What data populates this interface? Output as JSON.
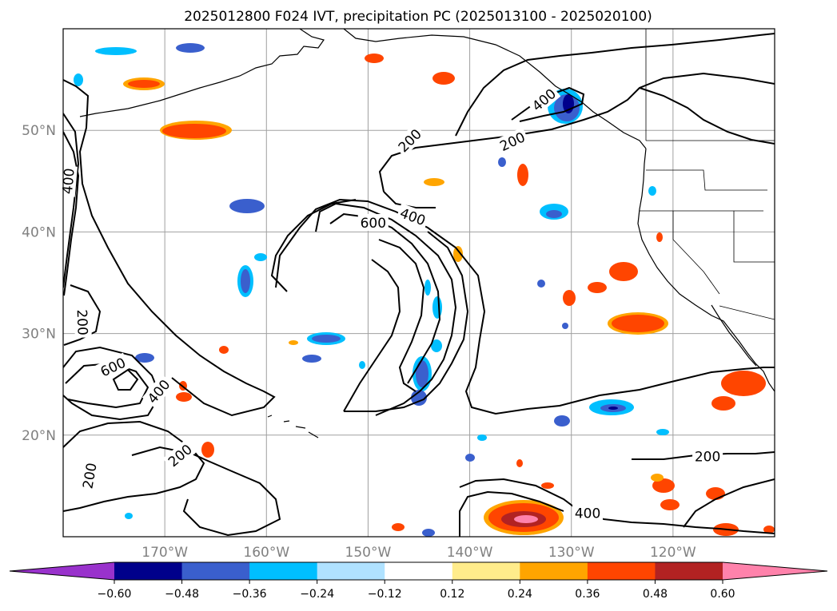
{
  "title": "2025012800 F024 IVT, precipitation PC (2025013100 - 2025020100)",
  "map": {
    "lon_range": [
      -180,
      -110
    ],
    "lat_range": [
      10,
      60
    ],
    "lon_ticks": [
      {
        "lon": -170,
        "label": "170°W"
      },
      {
        "lon": -160,
        "label": "160°W"
      },
      {
        "lon": -150,
        "label": "150°W"
      },
      {
        "lon": -140,
        "label": "140°W"
      },
      {
        "lon": -130,
        "label": "130°W"
      },
      {
        "lon": -120,
        "label": "120°W"
      }
    ],
    "lat_ticks": [
      {
        "lat": 50,
        "label": "50°N"
      },
      {
        "lat": 40,
        "label": "40°N"
      },
      {
        "lat": 30,
        "label": "30°N"
      },
      {
        "lat": 20,
        "label": "20°N"
      }
    ],
    "gridlines": true,
    "ivt_contour_labels": [
      {
        "text": "400",
        "lon": -179.5,
        "lat": 45.0,
        "angle": -85
      },
      {
        "text": "200",
        "lon": -178.1,
        "lat": 31.1,
        "angle": 88
      },
      {
        "text": "600",
        "lon": -175.1,
        "lat": 26.7,
        "angle": -25
      },
      {
        "text": "400",
        "lon": -170.6,
        "lat": 24.3,
        "angle": -50
      },
      {
        "text": "200",
        "lon": -168.5,
        "lat": 18.0,
        "angle": -40
      },
      {
        "text": "200",
        "lon": -177.4,
        "lat": 16.0,
        "angle": -80
      },
      {
        "text": "200",
        "lon": -145.9,
        "lat": 49.0,
        "angle": -45
      },
      {
        "text": "200",
        "lon": -135.8,
        "lat": 48.9,
        "angle": -25
      },
      {
        "text": "400",
        "lon": -132.7,
        "lat": 53.0,
        "angle": -40
      },
      {
        "text": "600",
        "lon": -149.5,
        "lat": 40.9,
        "angle": 0
      },
      {
        "text": "400",
        "lon": -145.6,
        "lat": 41.5,
        "angle": 20
      },
      {
        "text": "400",
        "lon": -128.4,
        "lat": 12.3,
        "angle": 0
      },
      {
        "text": "200",
        "lon": -116.6,
        "lat": 17.9,
        "angle": 0
      }
    ]
  },
  "colorbar": {
    "ticks": [
      "−0.60",
      "−0.48",
      "−0.36",
      "−0.24",
      "−0.12",
      "0.12",
      "0.24",
      "0.36",
      "0.48",
      "0.60"
    ],
    "colors": [
      "#9932cc",
      "#00008b",
      "#3a5fcd",
      "#00bfff",
      "#b0e2ff",
      "#ffffff",
      "#ffec8b",
      "#ffa500",
      "#ff4500",
      "#b22222",
      "#ff82ab"
    ],
    "extend": "both"
  },
  "style": {
    "frame_color": "#000000",
    "grid_color": "#a0a0a0",
    "contour_color": "#000000"
  }
}
